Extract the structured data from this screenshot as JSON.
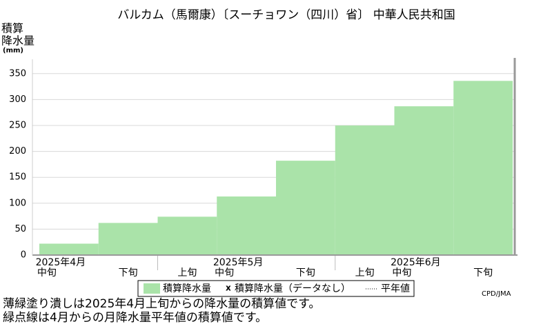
{
  "chart_data": {
    "type": "bar",
    "title": "バルカム（馬爾康）〔スーチョワン（四川）省〕 中華人民共和国",
    "y_label": [
      "積算",
      "降水量",
      "(mm)"
    ],
    "categories": [
      "中旬",
      "下旬",
      "上旬",
      "中旬",
      "下旬",
      "上旬",
      "中旬",
      "下旬"
    ],
    "months": [
      "2025年4月",
      "2025年5月",
      "2025年6月"
    ],
    "series": [
      {
        "name": "積算降水量",
        "color": "#aae3a9",
        "values": [
          22,
          62,
          74,
          113,
          182,
          250,
          287,
          336
        ]
      },
      {
        "name": "積算降水量（データなし）",
        "color": "#000000",
        "marker": "x",
        "values": [
          null,
          null,
          null,
          null,
          null,
          null,
          null,
          null
        ]
      },
      {
        "name": "平年値",
        "color": "#000000",
        "style": "dotted",
        "values": [
          null,
          null,
          null,
          null,
          null,
          null,
          null,
          null
        ]
      }
    ],
    "ylim": [
      0,
      375
    ],
    "yticks": [
      0,
      50,
      100,
      150,
      200,
      250,
      300,
      350
    ],
    "grid": true,
    "source": "CPD/JMA",
    "notes": [
      "薄緑塗り潰しは2025年4月上旬からの降水量の積算値です。",
      "緑点線は4月からの月降水量平年値の積算値です。"
    ]
  }
}
